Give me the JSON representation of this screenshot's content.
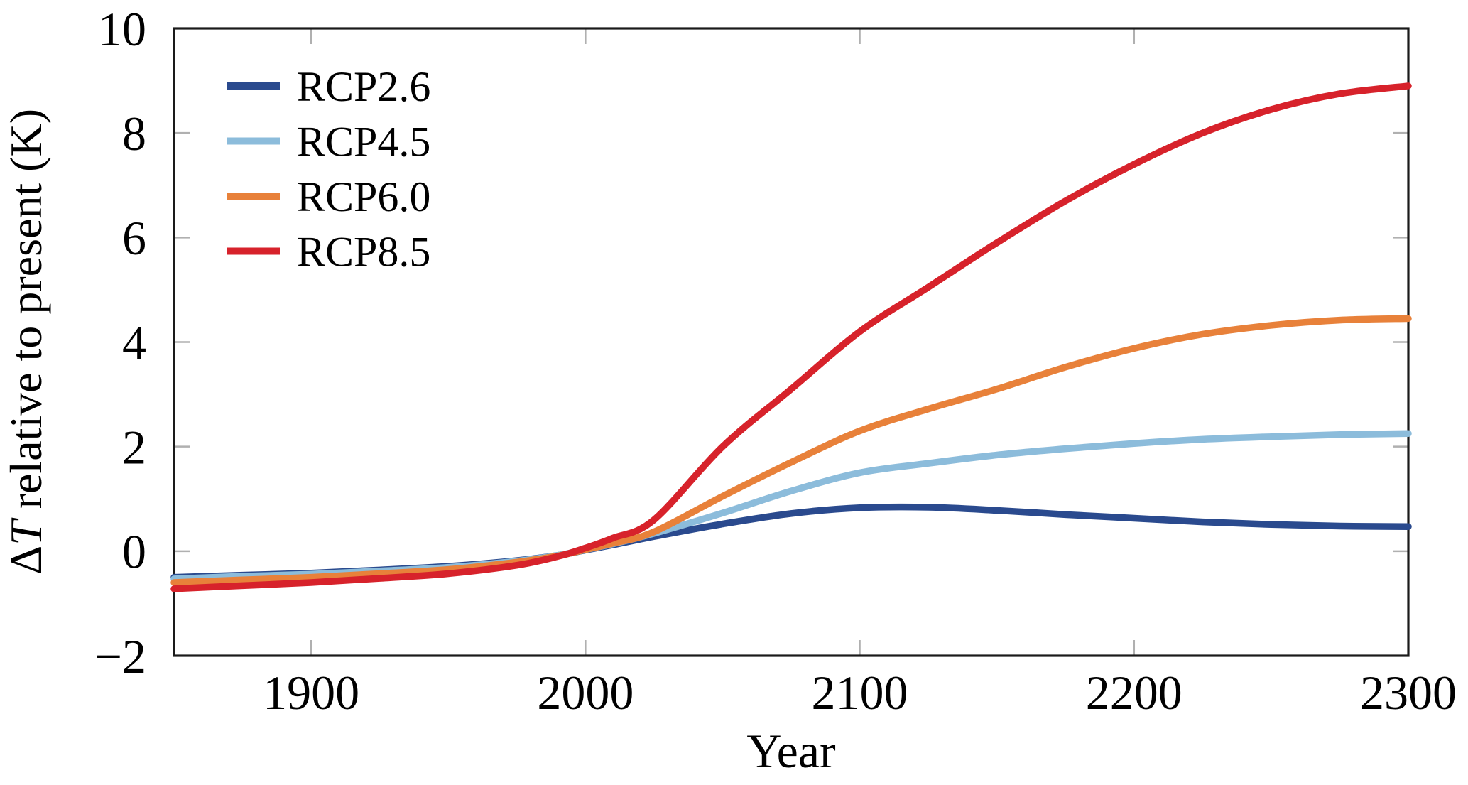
{
  "figure": {
    "background": "#ffffff"
  },
  "chart_data": {
    "type": "line",
    "title": "",
    "xlabel": "Year",
    "ylabel": "ΔT relative to present (K)",
    "ylabel_parts": {
      "delta": "Δ",
      "italic_var": "T",
      "rest": " relative to present (K)"
    },
    "xlim": [
      1850,
      2300
    ],
    "ylim": [
      -2,
      10
    ],
    "x_ticks": [
      1900,
      2000,
      2100,
      2200,
      2300
    ],
    "y_ticks": [
      -2,
      0,
      2,
      4,
      6,
      8,
      10
    ],
    "grid": false,
    "legend_position": "top-left",
    "frame_color": "#1a1a1a",
    "tick_color": "#b0b0b0",
    "x": [
      1850,
      1875,
      1900,
      1925,
      1950,
      1975,
      1990,
      2000,
      2010,
      2025,
      2050,
      2075,
      2100,
      2125,
      2150,
      2175,
      2200,
      2225,
      2250,
      2275,
      2300
    ],
    "series": [
      {
        "name": "RCP2.6",
        "color": "#2a4a8e",
        "values": [
          -0.5,
          -0.46,
          -0.42,
          -0.36,
          -0.29,
          -0.18,
          -0.08,
          0.02,
          0.12,
          0.28,
          0.52,
          0.72,
          0.83,
          0.84,
          0.78,
          0.7,
          0.63,
          0.56,
          0.51,
          0.48,
          0.47
        ]
      },
      {
        "name": "RCP4.5",
        "color": "#8cbcdb",
        "values": [
          -0.53,
          -0.48,
          -0.44,
          -0.38,
          -0.31,
          -0.19,
          -0.08,
          0.03,
          0.14,
          0.34,
          0.73,
          1.15,
          1.5,
          1.68,
          1.84,
          1.96,
          2.06,
          2.14,
          2.19,
          2.23,
          2.25
        ]
      },
      {
        "name": "RCP6.0",
        "color": "#e8813a",
        "values": [
          -0.6,
          -0.55,
          -0.5,
          -0.43,
          -0.35,
          -0.21,
          -0.09,
          0.03,
          0.15,
          0.37,
          1.05,
          1.7,
          2.3,
          2.72,
          3.1,
          3.52,
          3.88,
          4.15,
          4.32,
          4.42,
          4.45
        ]
      },
      {
        "name": "RCP8.5",
        "color": "#d7222b",
        "values": [
          -0.72,
          -0.66,
          -0.6,
          -0.52,
          -0.43,
          -0.27,
          -0.1,
          0.06,
          0.25,
          0.6,
          2.0,
          3.1,
          4.2,
          5.05,
          5.9,
          6.7,
          7.4,
          8.0,
          8.45,
          8.75,
          8.9
        ]
      }
    ]
  }
}
